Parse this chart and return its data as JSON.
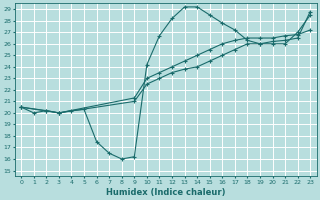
{
  "xlabel": "Humidex (Indice chaleur)",
  "bg_color": "#b8dede",
  "line_color": "#1a6b6b",
  "grid_color": "#ffffff",
  "xlim": [
    -0.5,
    23.5
  ],
  "ylim": [
    14.5,
    29.5
  ],
  "xticks": [
    0,
    1,
    2,
    3,
    4,
    5,
    6,
    7,
    8,
    9,
    10,
    11,
    12,
    13,
    14,
    15,
    16,
    17,
    18,
    19,
    20,
    21,
    22,
    23
  ],
  "yticks": [
    15,
    16,
    17,
    18,
    19,
    20,
    21,
    22,
    23,
    24,
    25,
    26,
    27,
    28,
    29
  ],
  "series1_x": [
    0,
    1,
    2,
    3,
    9,
    10,
    11,
    12,
    13,
    14,
    15,
    16,
    17,
    18,
    19,
    20,
    21,
    22,
    23
  ],
  "series1_y": [
    20.5,
    20.0,
    20.2,
    20.0,
    21.0,
    22.5,
    23.0,
    23.5,
    23.8,
    24.0,
    24.5,
    25.0,
    25.5,
    26.0,
    26.0,
    26.2,
    26.3,
    26.5,
    28.8
  ],
  "series2_x": [
    0,
    3,
    4,
    5,
    6,
    7,
    8,
    9,
    10,
    11,
    12,
    13,
    14,
    15,
    16,
    17,
    18,
    19,
    20,
    21,
    22,
    23
  ],
  "series2_y": [
    20.5,
    20.0,
    20.2,
    20.3,
    17.5,
    16.5,
    16.0,
    16.2,
    24.2,
    26.7,
    28.2,
    29.2,
    29.2,
    28.5,
    27.8,
    27.2,
    26.3,
    26.0,
    26.0,
    26.0,
    27.0,
    28.5
  ],
  "series3_x": [
    0,
    2,
    3,
    9,
    10,
    11,
    12,
    13,
    14,
    15,
    16,
    17,
    18,
    19,
    20,
    21,
    22,
    23
  ],
  "series3_y": [
    20.5,
    20.2,
    20.0,
    21.3,
    23.0,
    23.5,
    24.0,
    24.5,
    25.0,
    25.5,
    26.0,
    26.3,
    26.5,
    26.5,
    26.5,
    26.7,
    26.8,
    27.2
  ]
}
